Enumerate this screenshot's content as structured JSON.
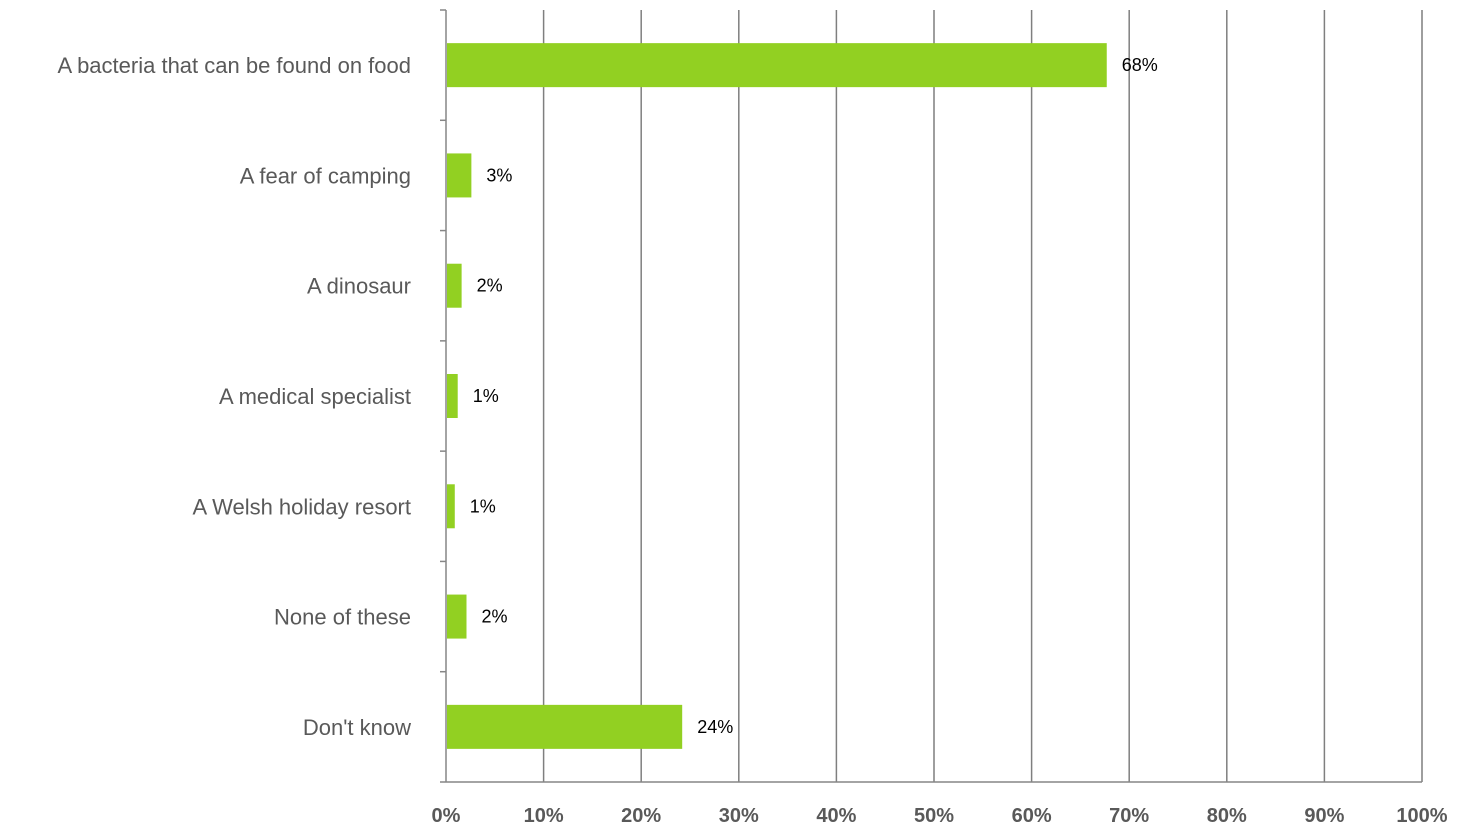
{
  "chart_data": {
    "type": "bar",
    "orientation": "horizontal",
    "categories": [
      "A bacteria that can be found on food",
      "A fear of camping",
      "A dinosaur",
      "A medical specialist",
      "A Welsh holiday resort",
      "None of these",
      "Don't know"
    ],
    "values": [
      67.7,
      2.6,
      1.6,
      1.2,
      0.9,
      2.1,
      24.2
    ],
    "data_labels": [
      "68%",
      "3%",
      "2%",
      "1%",
      "1%",
      "2%",
      "24%"
    ],
    "x_ticks": [
      "0%",
      "10%",
      "20%",
      "30%",
      "40%",
      "50%",
      "60%",
      "70%",
      "80%",
      "90%",
      "100%"
    ],
    "xlim": [
      0,
      100
    ],
    "grid": true,
    "legend": "none",
    "title": "",
    "xlabel": "",
    "ylabel": "",
    "bar_color": "#92d022",
    "grid_color": "#7f7f7f"
  }
}
